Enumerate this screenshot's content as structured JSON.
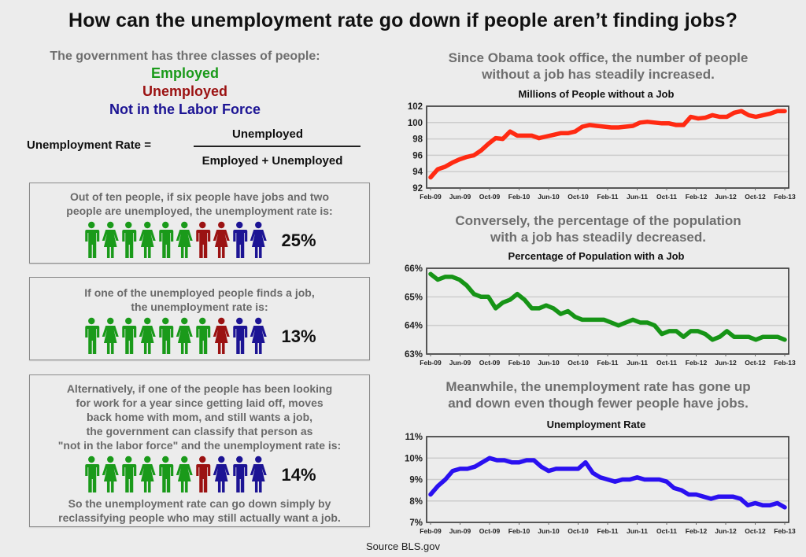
{
  "title": "How can the unemployment rate go down if people aren’t finding jobs?",
  "intro": {
    "lead": "The government has three classes of people:",
    "classes": [
      {
        "label": "Employed",
        "color": "#1a9a1a"
      },
      {
        "label": "Unemployed",
        "color": "#9b1212"
      },
      {
        "label": "Not in the Labor Force",
        "color": "#1c1494"
      }
    ]
  },
  "formula": {
    "lhs": "Unemployment Rate =",
    "numerator": "Unemployed",
    "denominator": "Employed + Unemployed"
  },
  "colors": {
    "employed": "#1a9a1a",
    "unemployed": "#9b1212",
    "nilf": "#1c1494"
  },
  "scenarios": [
    {
      "text": [
        "Out of ten people, if six people have jobs and two",
        "people are unemployed, the unemployment rate is:"
      ],
      "people": [
        "E-m",
        "E-f",
        "E-m",
        "E-f",
        "E-m",
        "E-f",
        "U-m",
        "U-f",
        "N-m",
        "N-f"
      ],
      "rate": "25%"
    },
    {
      "text": [
        "If one of the unemployed people finds a job,",
        "the unemployment rate is:"
      ],
      "people": [
        "E-m",
        "E-f",
        "E-m",
        "E-f",
        "E-m",
        "E-f",
        "E-m",
        "U-f",
        "N-m",
        "N-f"
      ],
      "rate": "13%"
    },
    {
      "text": [
        "Alternatively, if one of the people has been looking",
        "for work for a year since getting laid off, moves",
        "back home with mom, and still wants a job,",
        "the government can classify that person as",
        "\"not in the labor force\" and the unemployment rate is:"
      ],
      "people": [
        "E-m",
        "E-f",
        "E-m",
        "E-f",
        "E-m",
        "E-f",
        "U-m",
        "N-f",
        "N-m",
        "N-f"
      ],
      "rate": "14%",
      "footer": [
        "So the unemployment rate can go down simply by",
        "reclassifying people who may still actually want a job."
      ]
    }
  ],
  "right_headings": [
    [
      "Since Obama took office, the number of people",
      "without a job has steadily increased."
    ],
    [
      "Conversely, the percentage of the population",
      "with a job has steadily decreased."
    ],
    [
      "Meanwhile, the unemployment rate has gone up",
      "and down even though fewer people have jobs."
    ]
  ],
  "chart_data": [
    {
      "type": "line",
      "title": "Millions of People without a Job",
      "xlabel": "",
      "ylabel": "",
      "color": "#ff2a12",
      "ylim": [
        92,
        102
      ],
      "yticks": [
        92,
        94,
        96,
        98,
        100,
        102
      ],
      "ytick_labels": [
        "92",
        "94",
        "96",
        "98",
        "100",
        "102"
      ],
      "grid": true,
      "x_tick_labels": [
        "Feb-09",
        "Jun-09",
        "Oct-09",
        "Feb-10",
        "Jun-10",
        "Oct-10",
        "Feb-11",
        "Jun-11",
        "Oct-11",
        "Feb-12",
        "Jun-12",
        "Oct-12",
        "Feb-13"
      ],
      "x_start": "Feb-09",
      "x_end": "Feb-13",
      "series": [
        {
          "name": "Millions of People without a Job",
          "values": [
            93.3,
            94.3,
            94.6,
            95.1,
            95.5,
            95.8,
            96.0,
            96.6,
            97.4,
            98.1,
            98.0,
            98.9,
            98.4,
            98.4,
            98.4,
            98.1,
            98.3,
            98.5,
            98.7,
            98.7,
            98.9,
            99.5,
            99.7,
            99.6,
            99.5,
            99.4,
            99.4,
            99.5,
            99.6,
            100.0,
            100.1,
            100.0,
            99.9,
            99.9,
            99.7,
            99.7,
            100.7,
            100.5,
            100.6,
            100.9,
            100.7,
            100.7,
            101.2,
            101.4,
            100.9,
            100.7,
            100.9,
            101.1,
            101.4,
            101.4
          ]
        }
      ]
    },
    {
      "type": "line",
      "title": "Percentage of Population with a Job",
      "xlabel": "",
      "ylabel": "",
      "color": "#169416",
      "ylim": [
        63,
        66
      ],
      "yticks": [
        63,
        64,
        65,
        66
      ],
      "ytick_labels": [
        "63%",
        "64%",
        "65%",
        "66%"
      ],
      "grid": true,
      "x_tick_labels": [
        "Feb-09",
        "Jun-09",
        "Oct-09",
        "Feb-10",
        "Jun-10",
        "Oct-10",
        "Feb-11",
        "Jun-11",
        "Oct-11",
        "Feb-12",
        "Jun-12",
        "Oct-12",
        "Feb-13"
      ],
      "x_start": "Feb-09",
      "x_end": "Feb-13",
      "series": [
        {
          "name": "Percentage of Population with a Job",
          "values": [
            65.8,
            65.6,
            65.7,
            65.7,
            65.6,
            65.4,
            65.1,
            65.0,
            65.0,
            64.6,
            64.8,
            64.9,
            65.1,
            64.9,
            64.6,
            64.6,
            64.7,
            64.6,
            64.4,
            64.5,
            64.3,
            64.2,
            64.2,
            64.2,
            64.2,
            64.1,
            64.0,
            64.1,
            64.2,
            64.1,
            64.1,
            64.0,
            63.7,
            63.8,
            63.8,
            63.6,
            63.8,
            63.8,
            63.7,
            63.5,
            63.6,
            63.8,
            63.6,
            63.6,
            63.6,
            63.5,
            63.6,
            63.6,
            63.6,
            63.5
          ]
        }
      ]
    },
    {
      "type": "line",
      "title": "Unemployment Rate",
      "xlabel": "",
      "ylabel": "",
      "color": "#2a10f0",
      "ylim": [
        7,
        11
      ],
      "yticks": [
        7,
        8,
        9,
        10,
        11
      ],
      "ytick_labels": [
        "7%",
        "8%",
        "9%",
        "10%",
        "11%"
      ],
      "grid": true,
      "x_tick_labels": [
        "Feb-09",
        "Jun-09",
        "Oct-09",
        "Feb-10",
        "Jun-10",
        "Oct-10",
        "Feb-11",
        "Jun-11",
        "Oct-11",
        "Feb-12",
        "Jun-12",
        "Oct-12",
        "Feb-13"
      ],
      "x_start": "Feb-09",
      "x_end": "Feb-13",
      "series": [
        {
          "name": "Unemployment Rate",
          "values": [
            8.3,
            8.7,
            9.0,
            9.4,
            9.5,
            9.5,
            9.6,
            9.8,
            10.0,
            9.9,
            9.9,
            9.8,
            9.8,
            9.9,
            9.9,
            9.6,
            9.4,
            9.5,
            9.5,
            9.5,
            9.5,
            9.8,
            9.3,
            9.1,
            9.0,
            8.9,
            9.0,
            9.0,
            9.1,
            9.0,
            9.0,
            9.0,
            8.9,
            8.6,
            8.5,
            8.3,
            8.3,
            8.2,
            8.1,
            8.2,
            8.2,
            8.2,
            8.1,
            7.8,
            7.9,
            7.8,
            7.8,
            7.9,
            7.7
          ]
        }
      ]
    }
  ],
  "source": "Source BLS.gov"
}
